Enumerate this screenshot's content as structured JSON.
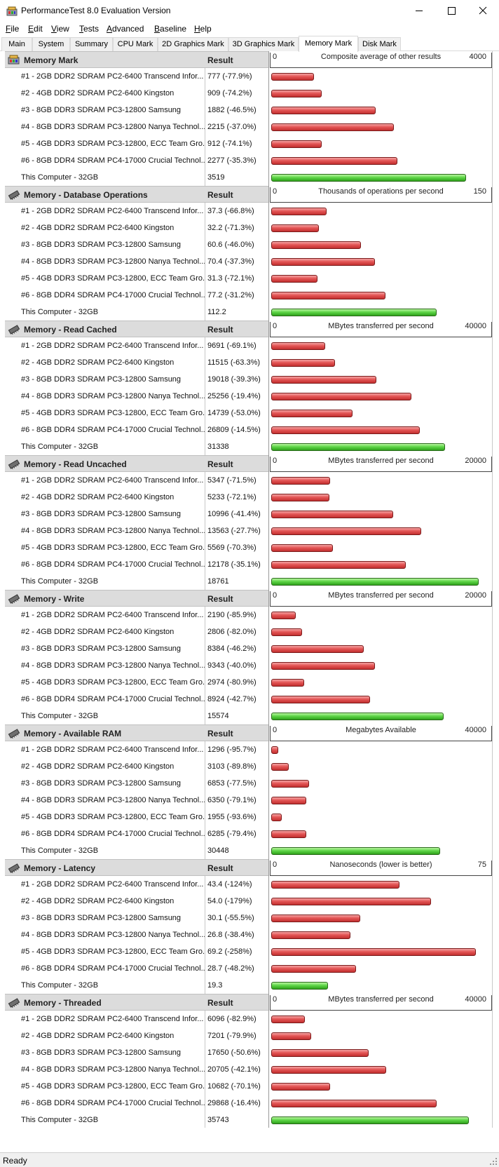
{
  "window": {
    "title": "PerformanceTest 8.0 Evaluation Version"
  },
  "menu": [
    "File",
    "Edit",
    "View",
    "Tests",
    "Advanced",
    "Baseline",
    "Help"
  ],
  "tabs": [
    "Main",
    "System",
    "Summary",
    "CPU Mark",
    "2D Graphics Mark",
    "3D Graphics Mark",
    "Memory Mark",
    "Disk Mark"
  ],
  "active_tab": "Memory Mark",
  "result_header": "Result",
  "status": "Ready",
  "colors": {
    "baseline_bar": "#e04848",
    "this_computer_bar": "#4fcf38"
  },
  "sections": [
    {
      "title": "Memory Mark",
      "scale_label": "Composite average of other results",
      "scale_min": "0",
      "scale_max": "4000",
      "max_value": 4000,
      "rows": [
        {
          "name": "#1 - 2GB DDR2 SDRAM PC2-6400 Transcend Infor...",
          "result": "777 (-77.9%)",
          "value": 777
        },
        {
          "name": "#2 - 4GB DDR2 SDRAM PC2-6400 Kingston",
          "result": "909 (-74.2%)",
          "value": 909
        },
        {
          "name": "#3 - 8GB DDR3 SDRAM PC3-12800 Samsung",
          "result": "1882 (-46.5%)",
          "value": 1882
        },
        {
          "name": "#4 - 8GB DDR3 SDRAM PC3-12800 Nanya Technol...",
          "result": "2215 (-37.0%)",
          "value": 2215
        },
        {
          "name": "#5 - 4GB DDR3 SDRAM PC3-12800, ECC Team Gro...",
          "result": "912 (-74.1%)",
          "value": 912
        },
        {
          "name": "#6 - 8GB DDR4 SDRAM PC4-17000 Crucial Technol...",
          "result": "2277 (-35.3%)",
          "value": 2277
        },
        {
          "name": "This Computer - 32GB",
          "result": "3519",
          "value": 3519,
          "this": true
        }
      ]
    },
    {
      "title": "Memory - Database Operations",
      "scale_label": "Thousands of operations per second",
      "scale_min": "0",
      "scale_max": "150",
      "max_value": 150,
      "rows": [
        {
          "name": "#1 - 2GB DDR2 SDRAM PC2-6400 Transcend Infor...",
          "result": "37.3 (-66.8%)",
          "value": 37.3
        },
        {
          "name": "#2 - 4GB DDR2 SDRAM PC2-6400 Kingston",
          "result": "32.2 (-71.3%)",
          "value": 32.2
        },
        {
          "name": "#3 - 8GB DDR3 SDRAM PC3-12800 Samsung",
          "result": "60.6 (-46.0%)",
          "value": 60.6
        },
        {
          "name": "#4 - 8GB DDR3 SDRAM PC3-12800 Nanya Technol...",
          "result": "70.4 (-37.3%)",
          "value": 70.4
        },
        {
          "name": "#5 - 4GB DDR3 SDRAM PC3-12800, ECC Team Gro...",
          "result": "31.3 (-72.1%)",
          "value": 31.3
        },
        {
          "name": "#6 - 8GB DDR4 SDRAM PC4-17000 Crucial Technol...",
          "result": "77.2 (-31.2%)",
          "value": 77.2
        },
        {
          "name": "This Computer - 32GB",
          "result": "112.2",
          "value": 112.2,
          "this": true
        }
      ]
    },
    {
      "title": "Memory - Read Cached",
      "scale_label": "MBytes transferred per second",
      "scale_min": "0",
      "scale_max": "40000",
      "max_value": 40000,
      "rows": [
        {
          "name": "#1 - 2GB DDR2 SDRAM PC2-6400 Transcend Infor...",
          "result": "9691 (-69.1%)",
          "value": 9691
        },
        {
          "name": "#2 - 4GB DDR2 SDRAM PC2-6400 Kingston",
          "result": "11515 (-63.3%)",
          "value": 11515
        },
        {
          "name": "#3 - 8GB DDR3 SDRAM PC3-12800 Samsung",
          "result": "19018 (-39.3%)",
          "value": 19018
        },
        {
          "name": "#4 - 8GB DDR3 SDRAM PC3-12800 Nanya Technol...",
          "result": "25256 (-19.4%)",
          "value": 25256
        },
        {
          "name": "#5 - 4GB DDR3 SDRAM PC3-12800, ECC Team Gro...",
          "result": "14739 (-53.0%)",
          "value": 14739
        },
        {
          "name": "#6 - 8GB DDR4 SDRAM PC4-17000 Crucial Technol...",
          "result": "26809 (-14.5%)",
          "value": 26809
        },
        {
          "name": "This Computer - 32GB",
          "result": "31338",
          "value": 31338,
          "this": true
        }
      ]
    },
    {
      "title": "Memory - Read Uncached",
      "scale_label": "MBytes transferred per second",
      "scale_min": "0",
      "scale_max": "20000",
      "max_value": 20000,
      "rows": [
        {
          "name": "#1 - 2GB DDR2 SDRAM PC2-6400 Transcend Infor...",
          "result": "5347 (-71.5%)",
          "value": 5347
        },
        {
          "name": "#2 - 4GB DDR2 SDRAM PC2-6400 Kingston",
          "result": "5233 (-72.1%)",
          "value": 5233
        },
        {
          "name": "#3 - 8GB DDR3 SDRAM PC3-12800 Samsung",
          "result": "10996 (-41.4%)",
          "value": 10996
        },
        {
          "name": "#4 - 8GB DDR3 SDRAM PC3-12800 Nanya Technol...",
          "result": "13563 (-27.7%)",
          "value": 13563
        },
        {
          "name": "#5 - 4GB DDR3 SDRAM PC3-12800, ECC Team Gro...",
          "result": "5569 (-70.3%)",
          "value": 5569
        },
        {
          "name": "#6 - 8GB DDR4 SDRAM PC4-17000 Crucial Technol...",
          "result": "12178 (-35.1%)",
          "value": 12178
        },
        {
          "name": "This Computer - 32GB",
          "result": "18761",
          "value": 18761,
          "this": true
        }
      ]
    },
    {
      "title": "Memory - Write",
      "scale_label": "MBytes transferred per second",
      "scale_min": "0",
      "scale_max": "20000",
      "max_value": 20000,
      "rows": [
        {
          "name": "#1 - 2GB DDR2 SDRAM PC2-6400 Transcend Infor...",
          "result": "2190 (-85.9%)",
          "value": 2190
        },
        {
          "name": "#2 - 4GB DDR2 SDRAM PC2-6400 Kingston",
          "result": "2806 (-82.0%)",
          "value": 2806
        },
        {
          "name": "#3 - 8GB DDR3 SDRAM PC3-12800 Samsung",
          "result": "8384 (-46.2%)",
          "value": 8384
        },
        {
          "name": "#4 - 8GB DDR3 SDRAM PC3-12800 Nanya Technol...",
          "result": "9343 (-40.0%)",
          "value": 9343
        },
        {
          "name": "#5 - 4GB DDR3 SDRAM PC3-12800, ECC Team Gro...",
          "result": "2974 (-80.9%)",
          "value": 2974
        },
        {
          "name": "#6 - 8GB DDR4 SDRAM PC4-17000 Crucial Technol...",
          "result": "8924 (-42.7%)",
          "value": 8924
        },
        {
          "name": "This Computer - 32GB",
          "result": "15574",
          "value": 15574,
          "this": true
        }
      ]
    },
    {
      "title": "Memory - Available RAM",
      "scale_label": "Megabytes Available",
      "scale_min": "0",
      "scale_max": "40000",
      "max_value": 40000,
      "rows": [
        {
          "name": "#1 - 2GB DDR2 SDRAM PC2-6400 Transcend Infor...",
          "result": "1296 (-95.7%)",
          "value": 1296
        },
        {
          "name": "#2 - 4GB DDR2 SDRAM PC2-6400 Kingston",
          "result": "3103 (-89.8%)",
          "value": 3103
        },
        {
          "name": "#3 - 8GB DDR3 SDRAM PC3-12800 Samsung",
          "result": "6853 (-77.5%)",
          "value": 6853
        },
        {
          "name": "#4 - 8GB DDR3 SDRAM PC3-12800 Nanya Technol...",
          "result": "6350 (-79.1%)",
          "value": 6350
        },
        {
          "name": "#5 - 4GB DDR3 SDRAM PC3-12800, ECC Team Gro...",
          "result": "1955 (-93.6%)",
          "value": 1955
        },
        {
          "name": "#6 - 8GB DDR4 SDRAM PC4-17000 Crucial Technol...",
          "result": "6285 (-79.4%)",
          "value": 6285
        },
        {
          "name": "This Computer - 32GB",
          "result": "30448",
          "value": 30448,
          "this": true
        }
      ]
    },
    {
      "title": "Memory - Latency",
      "scale_label": "Nanoseconds (lower is better)",
      "scale_min": "0",
      "scale_max": "75",
      "max_value": 75,
      "rows": [
        {
          "name": "#1 - 2GB DDR2 SDRAM PC2-6400 Transcend Infor...",
          "result": "43.4 (-124%)",
          "value": 43.4
        },
        {
          "name": "#2 - 4GB DDR2 SDRAM PC2-6400 Kingston",
          "result": "54.0 (-179%)",
          "value": 54.0
        },
        {
          "name": "#3 - 8GB DDR3 SDRAM PC3-12800 Samsung",
          "result": "30.1 (-55.5%)",
          "value": 30.1
        },
        {
          "name": "#4 - 8GB DDR3 SDRAM PC3-12800 Nanya Technol...",
          "result": "26.8 (-38.4%)",
          "value": 26.8
        },
        {
          "name": "#5 - 4GB DDR3 SDRAM PC3-12800, ECC Team Gro...",
          "result": "69.2 (-258%)",
          "value": 69.2
        },
        {
          "name": "#6 - 8GB DDR4 SDRAM PC4-17000 Crucial Technol...",
          "result": "28.7 (-48.2%)",
          "value": 28.7
        },
        {
          "name": "This Computer - 32GB",
          "result": "19.3",
          "value": 19.3,
          "this": true
        }
      ]
    },
    {
      "title": "Memory - Threaded",
      "scale_label": "MBytes transferred per second",
      "scale_min": "0",
      "scale_max": "40000",
      "max_value": 40000,
      "rows": [
        {
          "name": "#1 - 2GB DDR2 SDRAM PC2-6400 Transcend Infor...",
          "result": "6096 (-82.9%)",
          "value": 6096
        },
        {
          "name": "#2 - 4GB DDR2 SDRAM PC2-6400 Kingston",
          "result": "7201 (-79.9%)",
          "value": 7201
        },
        {
          "name": "#3 - 8GB DDR3 SDRAM PC3-12800 Samsung",
          "result": "17650 (-50.6%)",
          "value": 17650
        },
        {
          "name": "#4 - 8GB DDR3 SDRAM PC3-12800 Nanya Technol...",
          "result": "20705 (-42.1%)",
          "value": 20705
        },
        {
          "name": "#5 - 4GB DDR3 SDRAM PC3-12800, ECC Team Gro...",
          "result": "10682 (-70.1%)",
          "value": 10682
        },
        {
          "name": "#6 - 8GB DDR4 SDRAM PC4-17000 Crucial Technol...",
          "result": "29868 (-16.4%)",
          "value": 29868
        },
        {
          "name": "This Computer - 32GB",
          "result": "35743",
          "value": 35743,
          "this": true
        }
      ]
    }
  ]
}
